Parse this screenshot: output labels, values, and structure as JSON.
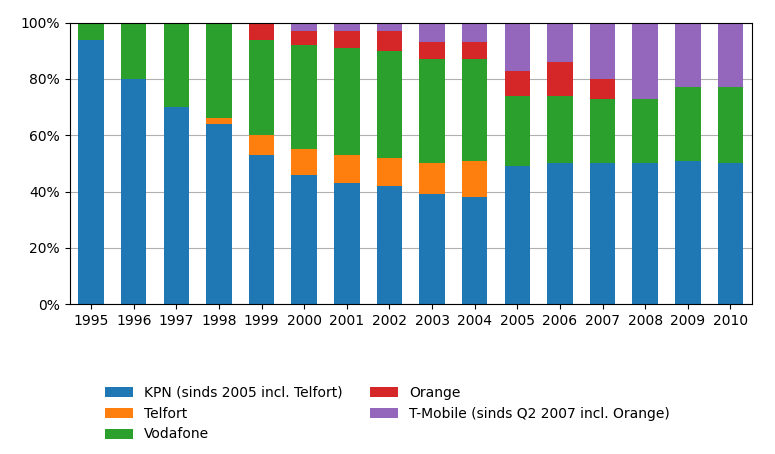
{
  "chart_data": {
    "type": "bar",
    "stacked": true,
    "categories": [
      "1995",
      "1996",
      "1997",
      "1998",
      "1999",
      "2000",
      "2001",
      "2002",
      "2003",
      "2004",
      "2005",
      "2006",
      "2007",
      "2008",
      "2009",
      "2010"
    ],
    "series": [
      {
        "name": "KPN (sinds 2005 incl. Telfort)",
        "values": [
          0.94,
          0.8,
          0.7,
          0.64,
          0.53,
          0.46,
          0.43,
          0.42,
          0.39,
          0.38,
          0.49,
          0.5,
          0.5,
          0.5,
          0.51,
          0.5
        ]
      },
      {
        "name": "Telfort",
        "values": [
          0.0,
          0.0,
          0.0,
          0.02,
          0.07,
          0.09,
          0.1,
          0.1,
          0.11,
          0.13,
          0.0,
          0.0,
          0.0,
          0.0,
          0.0,
          0.0
        ]
      },
      {
        "name": "Vodafone",
        "values": [
          0.06,
          0.2,
          0.3,
          0.34,
          0.34,
          0.37,
          0.38,
          0.38,
          0.37,
          0.36,
          0.25,
          0.24,
          0.23,
          0.23,
          0.26,
          0.27
        ]
      },
      {
        "name": "Orange",
        "values": [
          0.0,
          0.0,
          0.0,
          0.0,
          0.06,
          0.05,
          0.06,
          0.07,
          0.06,
          0.06,
          0.09,
          0.12,
          0.07,
          0.0,
          0.0,
          0.0
        ]
      },
      {
        "name": "T-Mobile (sinds Q2 2007 incl. Orange)",
        "values": [
          0.0,
          0.0,
          0.0,
          0.0,
          0.0,
          0.03,
          0.03,
          0.03,
          0.07,
          0.07,
          0.17,
          0.14,
          0.2,
          0.27,
          0.23,
          0.23
        ]
      }
    ],
    "ylim": [
      0,
      1.0
    ],
    "yticks": [
      {
        "value": 0,
        "label": "0%"
      },
      {
        "value": 0.2,
        "label": "20%"
      },
      {
        "value": 0.4,
        "label": "40%"
      },
      {
        "value": 0.6,
        "label": "60%"
      },
      {
        "value": 0.8,
        "label": "80%"
      },
      {
        "value": 1.0,
        "label": "100%"
      }
    ],
    "grid": true,
    "legend": "lower center"
  }
}
